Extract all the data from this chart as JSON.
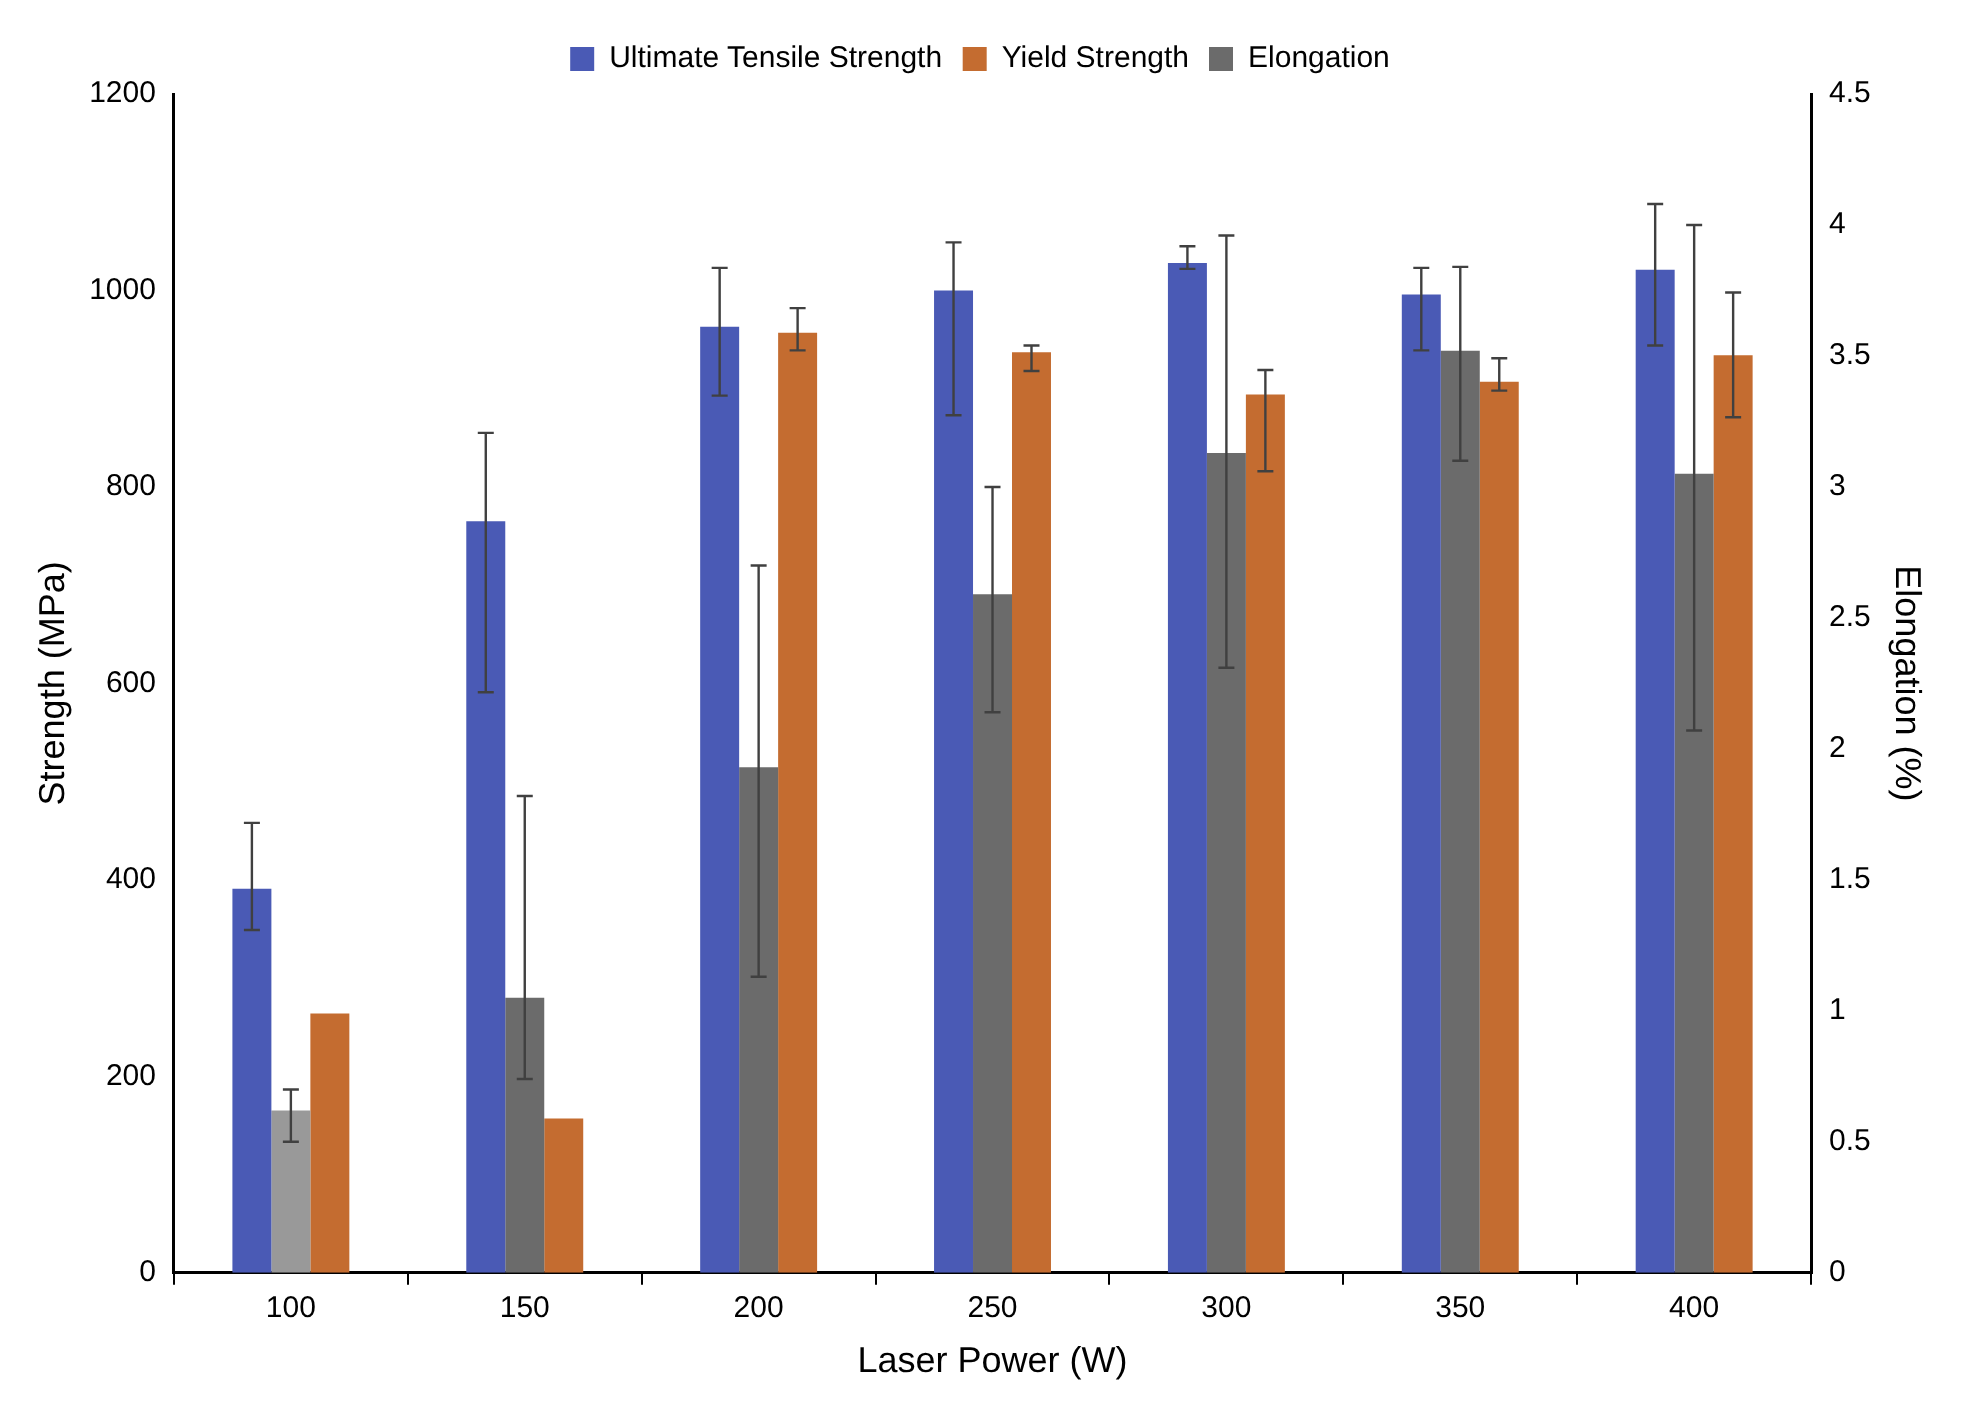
{
  "chart_data": {
    "type": "bar",
    "xlabel": "Laser Power (W)",
    "ylabel": "Strength (MPa)",
    "y2label": "Elongation (%)",
    "categories": [
      "100",
      "150",
      "200",
      "250",
      "300",
      "350",
      "400"
    ],
    "ylim": [
      0,
      1200
    ],
    "yticks": [
      0,
      200,
      400,
      600,
      800,
      1000,
      1200
    ],
    "y2lim": [
      0,
      4.5
    ],
    "y2ticks": [
      0,
      0.5,
      1,
      1.5,
      2,
      2.5,
      3,
      3.5,
      4,
      4.5
    ],
    "grid": false,
    "legend": "top",
    "series": [
      {
        "name": "Ultimate Tensile Strength",
        "color": "#4a5ab5",
        "values": [
          391,
          765,
          963,
          1000,
          1028,
          996,
          1021
        ],
        "errors": [
          [
            349,
            458
          ],
          [
            591,
            855
          ],
          [
            893,
            1023
          ],
          [
            873,
            1049
          ],
          [
            1022,
            1045
          ],
          [
            939,
            1023
          ],
          [
            944,
            1088
          ]
        ]
      },
      {
        "name": "Elongation",
        "color": "#6b6b6b",
        "colors": [
          "#999999",
          "#6b6b6b",
          "#6b6b6b",
          "#6b6b6b",
          "#6b6b6b",
          "#6b6b6b",
          "#6b6b6b"
        ],
        "axis": "y2",
        "values": [
          0.62,
          1.05,
          1.93,
          2.59,
          3.13,
          3.52,
          3.05
        ],
        "errors": [
          [
            0.5,
            0.7
          ],
          [
            0.74,
            1.82
          ],
          [
            1.13,
            2.7
          ],
          [
            2.14,
            3.0
          ],
          [
            2.31,
            3.96
          ],
          [
            3.1,
            3.84
          ],
          [
            2.07,
            4.0
          ]
        ]
      },
      {
        "name": "Yield Strength",
        "color": "#c46c30",
        "values": [
          264,
          157,
          957,
          937,
          894,
          907,
          934
        ],
        "errors": [
          null,
          null,
          [
            939,
            982
          ],
          [
            918,
            944
          ],
          [
            816,
            919
          ],
          [
            898,
            931
          ],
          [
            871,
            998
          ]
        ]
      }
    ]
  }
}
